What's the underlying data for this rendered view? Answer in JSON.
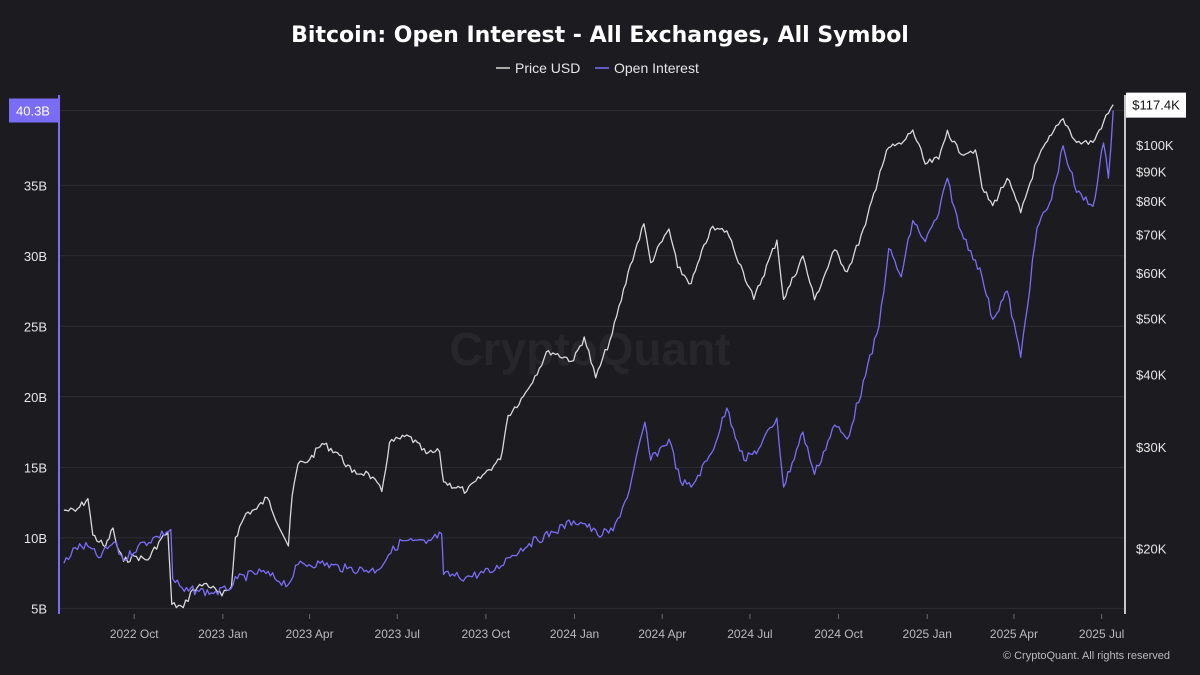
{
  "chart_data": {
    "type": "line",
    "title": "Bitcoin: Open Interest - All Exchanges, All Symbol",
    "watermark": "CryptoQuant",
    "footer": "© CryptoQuant. All rights reserved",
    "x_ticks": [
      "2022 Oct",
      "2023 Jan",
      "2023 Apr",
      "2023 Jul",
      "2023 Oct",
      "2024 Jan",
      "2024 Apr",
      "2024 Jul",
      "2024 Oct",
      "2025 Jan",
      "2025 Apr",
      "2025 Jul"
    ],
    "left_axis": {
      "scale": "linear",
      "ticks": [
        "5B",
        "10B",
        "15B",
        "20B",
        "25B",
        "30B",
        "35B"
      ],
      "tick_values": [
        5,
        10,
        15,
        20,
        25,
        30,
        35
      ],
      "range": [
        4.6,
        41.4
      ],
      "unit": "B USD",
      "latest_label": "40.3B",
      "latest_value": 40.3,
      "color": "#7b6cf6"
    },
    "right_axis": {
      "scale": "log",
      "ticks": [
        "$20K",
        "$30K",
        "$40K",
        "$50K",
        "$60K",
        "$70K",
        "$80K",
        "$90K",
        "$100K"
      ],
      "tick_values": [
        20000,
        30000,
        40000,
        50000,
        60000,
        70000,
        80000,
        90000,
        100000
      ],
      "range": [
        15400,
        122000
      ],
      "latest_label": "$117.4K",
      "latest_value": 117400,
      "color": "#ffffff"
    },
    "legend_position": "top-center",
    "grid": "horizontal",
    "series": [
      {
        "name": "Price USD",
        "axis": "right",
        "color": "#d9d9d9",
        "points": [
          [
            "2022-07-20",
            23300
          ],
          [
            "2022-08-01",
            23200
          ],
          [
            "2022-08-14",
            24400
          ],
          [
            "2022-08-19",
            21100
          ],
          [
            "2022-09-01",
            20100
          ],
          [
            "2022-09-09",
            21700
          ],
          [
            "2022-09-13",
            20200
          ],
          [
            "2022-09-20",
            19000
          ],
          [
            "2022-10-01",
            19400
          ],
          [
            "2022-10-15",
            19100
          ],
          [
            "2022-10-29",
            20800
          ],
          [
            "2022-11-05",
            21300
          ],
          [
            "2022-11-09",
            16000
          ],
          [
            "2022-11-21",
            15800
          ],
          [
            "2022-12-01",
            17000
          ],
          [
            "2022-12-15",
            17400
          ],
          [
            "2022-12-31",
            16550
          ],
          [
            "2023-01-10",
            17200
          ],
          [
            "2023-01-14",
            20900
          ],
          [
            "2023-01-25",
            23000
          ],
          [
            "2023-02-05",
            23400
          ],
          [
            "2023-02-16",
            24500
          ],
          [
            "2023-03-10",
            20200
          ],
          [
            "2023-03-14",
            24700
          ],
          [
            "2023-03-20",
            28000
          ],
          [
            "2023-04-01",
            28500
          ],
          [
            "2023-04-14",
            30400
          ],
          [
            "2023-04-30",
            29300
          ],
          [
            "2023-05-15",
            27100
          ],
          [
            "2023-06-01",
            27000
          ],
          [
            "2023-06-15",
            25100
          ],
          [
            "2023-06-23",
            30500
          ],
          [
            "2023-07-13",
            31300
          ],
          [
            "2023-07-31",
            29200
          ],
          [
            "2023-08-14",
            29400
          ],
          [
            "2023-08-18",
            26100
          ],
          [
            "2023-09-11",
            25100
          ],
          [
            "2023-09-30",
            27000
          ],
          [
            "2023-10-16",
            28500
          ],
          [
            "2023-10-24",
            34000
          ],
          [
            "2023-11-09",
            36700
          ],
          [
            "2023-12-05",
            44000
          ],
          [
            "2023-12-31",
            42300
          ],
          [
            "2024-01-11",
            46500
          ],
          [
            "2024-01-23",
            39500
          ],
          [
            "2024-02-09",
            47000
          ],
          [
            "2024-02-28",
            62000
          ],
          [
            "2024-03-13",
            73000
          ],
          [
            "2024-03-20",
            62500
          ],
          [
            "2024-04-08",
            71500
          ],
          [
            "2024-04-17",
            61300
          ],
          [
            "2024-05-01",
            57500
          ],
          [
            "2024-05-21",
            71400
          ],
          [
            "2024-06-07",
            71000
          ],
          [
            "2024-06-24",
            60300
          ],
          [
            "2024-07-05",
            54000
          ],
          [
            "2024-07-29",
            68400
          ],
          [
            "2024-08-05",
            54000
          ],
          [
            "2024-08-25",
            64200
          ],
          [
            "2024-09-06",
            53900
          ],
          [
            "2024-09-27",
            65800
          ],
          [
            "2024-10-10",
            60300
          ],
          [
            "2024-10-29",
            72700
          ],
          [
            "2024-11-13",
            90000
          ],
          [
            "2024-11-22",
            98900
          ],
          [
            "2024-12-05",
            100300
          ],
          [
            "2024-12-17",
            106100
          ],
          [
            "2024-12-30",
            92600
          ],
          [
            "2025-01-13",
            94500
          ],
          [
            "2025-01-22",
            106000
          ],
          [
            "2025-02-03",
            97000
          ],
          [
            "2025-02-20",
            98000
          ],
          [
            "2025-02-27",
            84200
          ],
          [
            "2025-03-10",
            78500
          ],
          [
            "2025-03-25",
            87500
          ],
          [
            "2025-04-08",
            76300
          ],
          [
            "2025-04-25",
            94000
          ],
          [
            "2025-05-10",
            104000
          ],
          [
            "2025-05-22",
            111000
          ],
          [
            "2025-06-05",
            101000
          ],
          [
            "2025-06-22",
            101000
          ],
          [
            "2025-07-03",
            109500
          ],
          [
            "2025-07-13",
            117400
          ]
        ]
      },
      {
        "name": "Open Interest",
        "axis": "left",
        "color": "#7b6cf6",
        "points": [
          [
            "2022-07-20",
            8.2
          ],
          [
            "2022-08-01",
            9.3
          ],
          [
            "2022-08-14",
            9.4
          ],
          [
            "2022-08-25",
            8.6
          ],
          [
            "2022-09-10",
            9.7
          ],
          [
            "2022-09-20",
            8.4
          ],
          [
            "2022-10-05",
            9.4
          ],
          [
            "2022-10-25",
            10.1
          ],
          [
            "2022-11-08",
            10.6
          ],
          [
            "2022-11-10",
            7.1
          ],
          [
            "2022-11-22",
            6.2
          ],
          [
            "2022-12-05",
            6.3
          ],
          [
            "2022-12-20",
            6.1
          ],
          [
            "2023-01-05",
            6.3
          ],
          [
            "2023-01-16",
            7.1
          ],
          [
            "2023-02-10",
            7.6
          ],
          [
            "2023-03-10",
            6.7
          ],
          [
            "2023-03-20",
            8.1
          ],
          [
            "2023-04-12",
            8.2
          ],
          [
            "2023-05-10",
            7.8
          ],
          [
            "2023-06-10",
            7.7
          ],
          [
            "2023-06-22",
            8.8
          ],
          [
            "2023-07-06",
            9.8
          ],
          [
            "2023-07-31",
            9.6
          ],
          [
            "2023-08-16",
            10.3
          ],
          [
            "2023-08-18",
            7.4
          ],
          [
            "2023-09-10",
            7.2
          ],
          [
            "2023-10-10",
            7.7
          ],
          [
            "2023-10-24",
            8.6
          ],
          [
            "2023-11-15",
            9.6
          ],
          [
            "2023-12-10",
            10.4
          ],
          [
            "2023-12-31",
            11.2
          ],
          [
            "2024-01-12",
            11.0
          ],
          [
            "2024-01-25",
            10.2
          ],
          [
            "2024-02-10",
            10.5
          ],
          [
            "2024-02-27",
            13.4
          ],
          [
            "2024-03-14",
            18.2
          ],
          [
            "2024-03-20",
            15.5
          ],
          [
            "2024-04-08",
            17.0
          ],
          [
            "2024-04-20",
            14.0
          ],
          [
            "2024-05-01",
            13.6
          ],
          [
            "2024-05-22",
            16.0
          ],
          [
            "2024-06-07",
            19.2
          ],
          [
            "2024-06-25",
            15.5
          ],
          [
            "2024-07-10",
            16.3
          ],
          [
            "2024-07-29",
            18.5
          ],
          [
            "2024-08-05",
            13.6
          ],
          [
            "2024-08-25",
            17.5
          ],
          [
            "2024-09-06",
            14.5
          ],
          [
            "2024-09-27",
            18.0
          ],
          [
            "2024-10-10",
            17.0
          ],
          [
            "2024-10-29",
            21.5
          ],
          [
            "2024-11-12",
            25.0
          ],
          [
            "2024-11-22",
            30.5
          ],
          [
            "2024-12-05",
            28.5
          ],
          [
            "2024-12-17",
            32.5
          ],
          [
            "2024-12-30",
            31.0
          ],
          [
            "2025-01-13",
            33.0
          ],
          [
            "2025-01-22",
            35.5
          ],
          [
            "2025-02-03",
            32.0
          ],
          [
            "2025-02-20",
            29.7
          ],
          [
            "2025-02-27",
            28.5
          ],
          [
            "2025-03-10",
            25.5
          ],
          [
            "2025-03-25",
            27.5
          ],
          [
            "2025-04-08",
            22.8
          ],
          [
            "2025-04-25",
            32.0
          ],
          [
            "2025-05-10",
            34.0
          ],
          [
            "2025-05-22",
            37.8
          ],
          [
            "2025-06-05",
            34.5
          ],
          [
            "2025-06-22",
            33.5
          ],
          [
            "2025-07-03",
            38.0
          ],
          [
            "2025-07-08",
            35.5
          ],
          [
            "2025-07-13",
            40.3
          ]
        ]
      }
    ]
  },
  "colors": {
    "background": "#1b1b20",
    "grid": "#2c2c33",
    "accent": "#7b6cf6",
    "price": "#d9d9d9"
  }
}
